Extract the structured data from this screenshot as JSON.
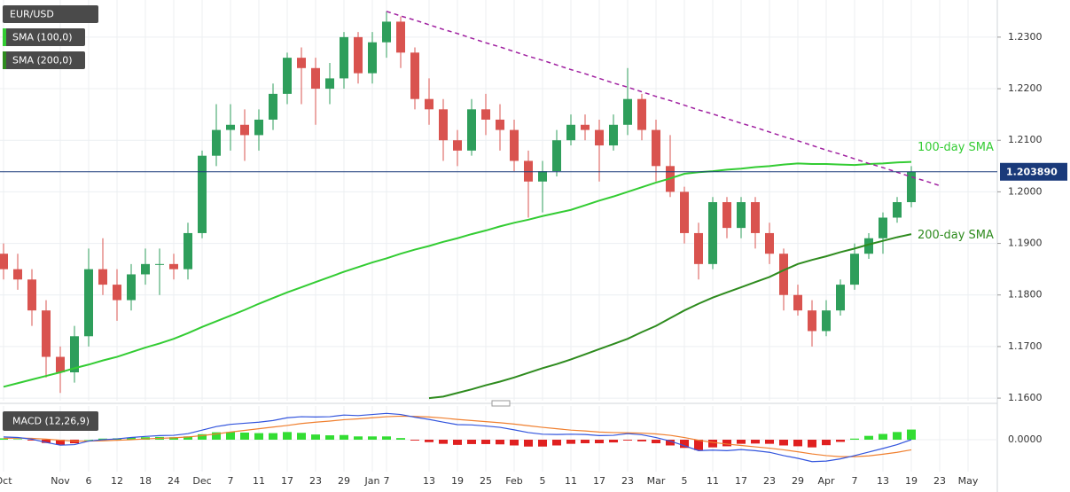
{
  "chart_data": {
    "type": "candlestick",
    "title": "EUR/USD",
    "categories": [
      "Oct",
      null,
      null,
      null,
      "Nov",
      null,
      "6",
      null,
      "12",
      null,
      "18",
      null,
      "24",
      null,
      "Dec",
      null,
      "7",
      null,
      "11",
      null,
      "17",
      null,
      "23",
      null,
      "29",
      null,
      "Jan",
      "7",
      null,
      null,
      "13",
      null,
      "19",
      null,
      "25",
      null,
      "Feb",
      null,
      "5",
      null,
      "11",
      null,
      "17",
      null,
      "23",
      null,
      "Mar",
      null,
      "5",
      null,
      "11",
      null,
      "17",
      null,
      "23",
      null,
      "29",
      null,
      "Apr",
      null,
      "7",
      null,
      "13",
      null,
      "19",
      null,
      "23",
      null,
      "May"
    ],
    "candles": [
      [
        1.188,
        1.19,
        1.183,
        1.185
      ],
      [
        1.185,
        1.188,
        1.181,
        1.183
      ],
      [
        1.183,
        1.185,
        1.174,
        1.177
      ],
      [
        1.177,
        1.179,
        1.164,
        1.168
      ],
      [
        1.168,
        1.17,
        1.161,
        1.165
      ],
      [
        1.165,
        1.174,
        1.163,
        1.172
      ],
      [
        1.172,
        1.189,
        1.17,
        1.185
      ],
      [
        1.185,
        1.191,
        1.18,
        1.182
      ],
      [
        1.182,
        1.185,
        1.175,
        1.179
      ],
      [
        1.179,
        1.186,
        1.177,
        1.184
      ],
      [
        1.184,
        1.189,
        1.182,
        1.186
      ],
      [
        1.186,
        1.189,
        1.18,
        1.186
      ],
      [
        1.186,
        1.188,
        1.183,
        1.185
      ],
      [
        1.185,
        1.194,
        1.183,
        1.192
      ],
      [
        1.192,
        1.208,
        1.191,
        1.207
      ],
      [
        1.207,
        1.217,
        1.205,
        1.212
      ],
      [
        1.212,
        1.217,
        1.208,
        1.213
      ],
      [
        1.213,
        1.216,
        1.206,
        1.211
      ],
      [
        1.211,
        1.216,
        1.208,
        1.214
      ],
      [
        1.214,
        1.221,
        1.212,
        1.219
      ],
      [
        1.219,
        1.227,
        1.217,
        1.226
      ],
      [
        1.226,
        1.228,
        1.217,
        1.224
      ],
      [
        1.224,
        1.226,
        1.213,
        1.22
      ],
      [
        1.22,
        1.225,
        1.217,
        1.222
      ],
      [
        1.222,
        1.231,
        1.22,
        1.23
      ],
      [
        1.23,
        1.231,
        1.221,
        1.223
      ],
      [
        1.223,
        1.231,
        1.221,
        1.229
      ],
      [
        1.229,
        1.235,
        1.226,
        1.233
      ],
      [
        1.233,
        1.234,
        1.224,
        1.227
      ],
      [
        1.227,
        1.228,
        1.216,
        1.218
      ],
      [
        1.218,
        1.222,
        1.213,
        1.216
      ],
      [
        1.216,
        1.218,
        1.206,
        1.21
      ],
      [
        1.21,
        1.212,
        1.205,
        1.208
      ],
      [
        1.208,
        1.218,
        1.207,
        1.216
      ],
      [
        1.216,
        1.219,
        1.211,
        1.214
      ],
      [
        1.214,
        1.217,
        1.208,
        1.212
      ],
      [
        1.212,
        1.214,
        1.204,
        1.206
      ],
      [
        1.206,
        1.208,
        1.195,
        1.202
      ],
      [
        1.202,
        1.206,
        1.196,
        1.204
      ],
      [
        1.204,
        1.212,
        1.203,
        1.21
      ],
      [
        1.21,
        1.215,
        1.209,
        1.213
      ],
      [
        1.213,
        1.215,
        1.21,
        1.212
      ],
      [
        1.212,
        1.214,
        1.202,
        1.209
      ],
      [
        1.209,
        1.215,
        1.208,
        1.213
      ],
      [
        1.213,
        1.224,
        1.211,
        1.218
      ],
      [
        1.218,
        1.219,
        1.21,
        1.212
      ],
      [
        1.212,
        1.214,
        1.202,
        1.205
      ],
      [
        1.205,
        1.211,
        1.199,
        1.2
      ],
      [
        1.2,
        1.201,
        1.19,
        1.192
      ],
      [
        1.192,
        1.194,
        1.183,
        1.186
      ],
      [
        1.186,
        1.199,
        1.185,
        1.198
      ],
      [
        1.198,
        1.199,
        1.191,
        1.193
      ],
      [
        1.193,
        1.199,
        1.191,
        1.198
      ],
      [
        1.198,
        1.199,
        1.189,
        1.192
      ],
      [
        1.192,
        1.194,
        1.186,
        1.188
      ],
      [
        1.188,
        1.189,
        1.177,
        1.18
      ],
      [
        1.18,
        1.182,
        1.176,
        1.177
      ],
      [
        1.177,
        1.179,
        1.17,
        1.173
      ],
      [
        1.173,
        1.179,
        1.172,
        1.177
      ],
      [
        1.177,
        1.183,
        1.176,
        1.182
      ],
      [
        1.182,
        1.19,
        1.181,
        1.188
      ],
      [
        1.188,
        1.192,
        1.187,
        1.191
      ],
      [
        1.191,
        1.196,
        1.188,
        1.195
      ],
      [
        1.195,
        1.199,
        1.194,
        1.198
      ],
      [
        1.198,
        1.205,
        1.197,
        1.2039
      ],
      null,
      null,
      null,
      null
    ],
    "up_color": "#2e9e5b",
    "down_color": "#d9534f",
    "series": [
      {
        "name": "SMA (100,0)",
        "color": "#33cc33",
        "values": [
          1.1622,
          1.1629,
          1.1636,
          1.1643,
          1.165,
          1.1658,
          1.1665,
          1.1673,
          1.168,
          1.1689,
          1.1698,
          1.1706,
          1.1715,
          1.1726,
          1.1738,
          1.1749,
          1.176,
          1.1771,
          1.1783,
          1.1794,
          1.1805,
          1.1815,
          1.1825,
          1.1835,
          1.1845,
          1.1854,
          1.1863,
          1.1871,
          1.188,
          1.1888,
          1.1895,
          1.1903,
          1.191,
          1.1918,
          1.1925,
          1.1933,
          1.194,
          1.1946,
          1.1953,
          1.1959,
          1.1965,
          1.1974,
          1.1983,
          1.1991,
          1.2,
          1.2009,
          1.2018,
          1.2026,
          1.2035,
          1.2038,
          1.204,
          1.2043,
          1.2045,
          1.2048,
          1.205,
          1.2053,
          1.2055,
          1.2054,
          1.2054,
          1.2053,
          1.2052,
          1.2054,
          1.2055,
          1.2057,
          1.2058,
          null,
          null,
          null,
          null
        ]
      },
      {
        "name": "SMA (200,0)",
        "color": "#2e8b1e",
        "values": [
          null,
          null,
          null,
          null,
          null,
          null,
          null,
          null,
          null,
          null,
          null,
          null,
          null,
          null,
          null,
          null,
          null,
          null,
          null,
          null,
          null,
          null,
          null,
          null,
          null,
          null,
          null,
          null,
          null,
          null,
          1.16,
          1.1603,
          1.161,
          1.1617,
          1.1625,
          1.1632,
          1.164,
          1.1649,
          1.1658,
          1.1666,
          1.1675,
          1.1685,
          1.1695,
          1.1705,
          1.1715,
          1.1728,
          1.174,
          1.1755,
          1.177,
          1.1783,
          1.1795,
          1.1805,
          1.1815,
          1.1825,
          1.1835,
          1.1848,
          1.186,
          1.1868,
          1.1875,
          1.1883,
          1.189,
          1.1898,
          1.1905,
          1.1912,
          1.1918,
          null,
          null,
          null,
          null
        ]
      }
    ],
    "trendline": {
      "color": "#a020a0",
      "values": [
        null,
        null,
        null,
        null,
        null,
        null,
        null,
        null,
        null,
        null,
        null,
        null,
        null,
        null,
        null,
        null,
        null,
        null,
        null,
        null,
        null,
        null,
        null,
        null,
        null,
        null,
        null,
        1.235,
        1.2341,
        1.2333,
        1.2324,
        1.2315,
        1.2307,
        1.2298,
        1.2289,
        1.2281,
        1.2272,
        1.2263,
        1.2255,
        1.2246,
        1.2237,
        1.2229,
        1.222,
        1.2211,
        1.2203,
        1.2194,
        1.2185,
        1.2177,
        1.2168,
        1.2159,
        1.2151,
        1.2142,
        1.2133,
        1.2125,
        1.2116,
        1.2107,
        1.2099,
        1.209,
        1.2081,
        1.2073,
        1.2064,
        1.2055,
        1.2047,
        1.2038,
        1.2029,
        1.2021,
        1.2012,
        null,
        null
      ]
    },
    "price_line": {
      "value": 1.20389,
      "label": "1.203890",
      "color": "#1a3a7a"
    },
    "annotations": [
      {
        "text": "100-day SMA",
        "value": 1.2065,
        "color": "#33cc33"
      },
      {
        "text": "200-day SMA",
        "value": 1.1895,
        "color": "#2e8b1e"
      }
    ],
    "ylim": [
      1.1595,
      1.2372
    ],
    "yticks": [
      {
        "value": 1.23,
        "label": "1.2300"
      },
      {
        "value": 1.22,
        "label": "1.2200"
      },
      {
        "value": 1.21,
        "label": "1.2100"
      },
      {
        "value": 1.2,
        "label": "1.2000"
      },
      {
        "value": 1.19,
        "label": "1.1900"
      },
      {
        "value": 1.18,
        "label": "1.1800"
      },
      {
        "value": 1.17,
        "label": "1.1700"
      },
      {
        "value": 1.16,
        "label": "1.1600"
      }
    ],
    "grid": true,
    "macd": {
      "name": "MACD (12,26,9)",
      "ylim": [
        -0.011,
        0.011
      ],
      "yticks": [
        {
          "value": 0,
          "label": "0.0000"
        }
      ],
      "line_color": "#3355dd",
      "signal_color": "#f08030",
      "hist_up_color": "#33dd33",
      "hist_down_color": "#e02020",
      "macd": [
        0.001,
        0.0008,
        0.0002,
        -0.001,
        -0.002,
        -0.0018,
        -0.0005,
        0.0,
        0.0003,
        0.0008,
        0.0012,
        0.0015,
        0.0016,
        0.0022,
        0.0035,
        0.0048,
        0.0056,
        0.006,
        0.0064,
        0.007,
        0.008,
        0.0084,
        0.0083,
        0.0084,
        0.009,
        0.0088,
        0.0092,
        0.0096,
        0.0092,
        0.0082,
        0.0074,
        0.0064,
        0.0055,
        0.0054,
        0.005,
        0.0045,
        0.0036,
        0.0026,
        0.002,
        0.0019,
        0.002,
        0.0019,
        0.0015,
        0.0016,
        0.0022,
        0.0018,
        0.0008,
        -0.0005,
        -0.0022,
        -0.004,
        -0.0038,
        -0.004,
        -0.0036,
        -0.004,
        -0.0046,
        -0.0058,
        -0.0068,
        -0.008,
        -0.0078,
        -0.007,
        -0.0058,
        -0.0045,
        -0.0032,
        -0.0018,
        0.0,
        null,
        null,
        null,
        null
      ],
      "signal": [
        0.0005,
        0.0006,
        0.0005,
        0.0002,
        -0.0002,
        -0.0005,
        -0.0005,
        -0.0004,
        -0.0002,
        0.0,
        0.0003,
        0.0005,
        0.0007,
        0.001,
        0.0015,
        0.0021,
        0.0028,
        0.0034,
        0.004,
        0.0046,
        0.0052,
        0.0059,
        0.0064,
        0.0068,
        0.0073,
        0.0076,
        0.008,
        0.0084,
        0.0086,
        0.0085,
        0.0083,
        0.0079,
        0.0074,
        0.007,
        0.0066,
        0.0062,
        0.0057,
        0.0051,
        0.0045,
        0.004,
        0.0035,
        0.0032,
        0.0028,
        0.0026,
        0.0025,
        0.0024,
        0.0021,
        0.0016,
        0.0008,
        -0.0002,
        -0.001,
        -0.0016,
        -0.0021,
        -0.0026,
        -0.0031,
        -0.0037,
        -0.0044,
        -0.0052,
        -0.0058,
        -0.0062,
        -0.0062,
        -0.0059,
        -0.0053,
        -0.0046,
        -0.0037,
        null,
        null,
        null,
        null
      ],
      "histogram": [
        0.0005,
        0.0002,
        -0.0003,
        -0.0012,
        -0.0018,
        -0.0013,
        0.0,
        0.0004,
        0.0005,
        0.0008,
        0.0009,
        0.001,
        0.0009,
        0.0012,
        0.002,
        0.0027,
        0.0028,
        0.0026,
        0.0024,
        0.0024,
        0.0028,
        0.0025,
        0.0019,
        0.0016,
        0.0017,
        0.0012,
        0.0012,
        0.0012,
        0.0006,
        -0.0003,
        -0.0009,
        -0.0015,
        -0.0019,
        -0.0016,
        -0.0016,
        -0.0017,
        -0.0021,
        -0.0025,
        -0.0025,
        -0.0021,
        -0.0015,
        -0.0013,
        -0.0013,
        -0.001,
        -0.0003,
        -0.0006,
        -0.0013,
        -0.0021,
        -0.003,
        -0.0038,
        -0.0028,
        -0.0024,
        -0.0015,
        -0.0014,
        -0.0015,
        -0.0021,
        -0.0024,
        -0.0028,
        -0.002,
        -0.0008,
        0.0004,
        0.0014,
        0.0021,
        0.0028,
        0.0037,
        null,
        null,
        null,
        null
      ]
    }
  }
}
